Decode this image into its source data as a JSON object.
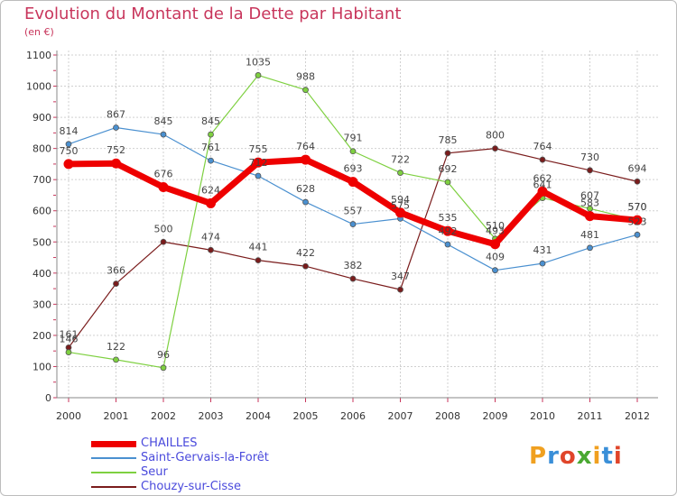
{
  "header": {
    "title": "Evolution du Montant de la Dette par Habitant",
    "unit": "(en €)"
  },
  "logo": {
    "text": "Proxiti",
    "colors": [
      "#f0a020",
      "#3a8fd8",
      "#e0452a",
      "#4aa832",
      "#f0a020",
      "#3a8fd8",
      "#e0452a"
    ]
  },
  "chart_data": {
    "type": "line",
    "x": [
      "2000",
      "2001",
      "2002",
      "2003",
      "2004",
      "2005",
      "2006",
      "2007",
      "2008",
      "2009",
      "2010",
      "2011",
      "2012"
    ],
    "ylim": [
      0,
      1100
    ],
    "yticks": [
      "0",
      "100",
      "200",
      "300",
      "400",
      "500",
      "600",
      "700",
      "800",
      "900",
      "1000",
      "1100"
    ],
    "grid": true,
    "legend_position": "bottom-left",
    "series": [
      {
        "name": "Chouzy-sur-Cisse",
        "color": "#7a1c1c",
        "width": 1.2,
        "values": [
          161,
          366,
          500,
          474,
          441,
          422,
          382,
          347,
          785,
          800,
          764,
          730,
          694
        ],
        "labels": [
          "161",
          "366",
          "500",
          "474",
          "441",
          "422",
          "382",
          "347",
          "785",
          "800",
          "764",
          "730",
          "694"
        ]
      },
      {
        "name": "Saint-Gervais-la-Forêt",
        "color": "#4a90d0",
        "width": 1.2,
        "values": [
          814,
          867,
          845,
          761,
          712,
          628,
          557,
          575,
          492,
          409,
          431,
          481,
          523
        ],
        "labels": [
          "814",
          "867",
          "845",
          "761",
          "712",
          "628",
          "557",
          "575",
          "492",
          "409",
          "431",
          "481",
          "523"
        ]
      },
      {
        "name": "Seur",
        "color": "#7ed040",
        "width": 1.2,
        "values": [
          146,
          122,
          96,
          845,
          1035,
          988,
          791,
          722,
          692,
          510,
          641,
          607,
          570
        ],
        "labels": [
          "146",
          "122",
          "96",
          "845",
          "1035",
          "988",
          "791",
          "722",
          "692",
          "510",
          "641",
          "607",
          "570"
        ]
      },
      {
        "name": "CHAILLES",
        "color": "#ee0000",
        "width": 7,
        "values": [
          750,
          752,
          676,
          624,
          755,
          764,
          693,
          594,
          535,
          493,
          662,
          583,
          570
        ],
        "labels": [
          "750",
          "752",
          "676",
          "624",
          "755",
          "764",
          "693",
          "594",
          "535",
          "493",
          "662",
          "583",
          "570"
        ]
      }
    ]
  },
  "legend": [
    {
      "name": "CHAILLES",
      "color": "#ee0000",
      "width": 7
    },
    {
      "name": "Saint-Gervais-la-Forêt",
      "color": "#4a90d0",
      "width": 1.5
    },
    {
      "name": "Seur",
      "color": "#7ed040",
      "width": 1.5
    },
    {
      "name": "Chouzy-sur-Cisse",
      "color": "#7a1c1c",
      "width": 1.5
    }
  ]
}
